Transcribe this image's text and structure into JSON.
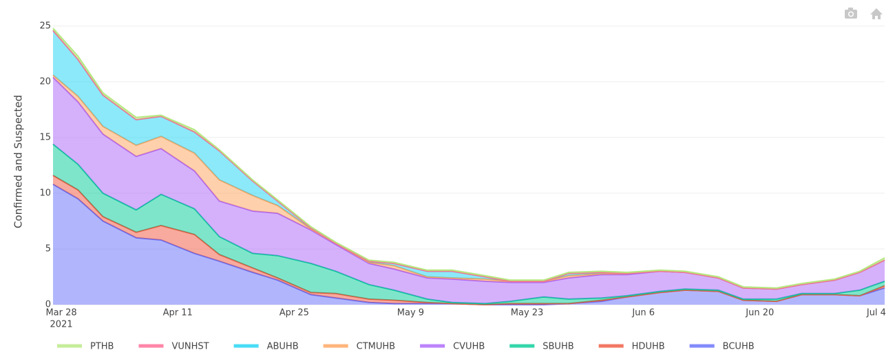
{
  "chart_data": {
    "type": "stacked_area",
    "y_label": "Confirmed and Suspected",
    "x": [
      "2021-03-27",
      "2021-03-30",
      "2021-04-02",
      "2021-04-06",
      "2021-04-09",
      "2021-04-13",
      "2021-04-16",
      "2021-04-20",
      "2021-04-23",
      "2021-04-27",
      "2021-04-30",
      "2021-05-04",
      "2021-05-07",
      "2021-05-11",
      "2021-05-14",
      "2021-05-18",
      "2021-05-21",
      "2021-05-25",
      "2021-05-28",
      "2021-06-01",
      "2021-06-04",
      "2021-06-08",
      "2021-06-11",
      "2021-06-15",
      "2021-06-18",
      "2021-06-22",
      "2021-06-25",
      "2021-06-29",
      "2021-07-02",
      "2021-07-05"
    ],
    "xlim": [
      "2021-03-27",
      "2021-07-05"
    ],
    "xticks": [
      {
        "value": "2021-03-28",
        "label": "Mar 28"
      },
      {
        "value": "2021-04-11",
        "label": "Apr 11"
      },
      {
        "value": "2021-04-25",
        "label": "Apr 25"
      },
      {
        "value": "2021-05-09",
        "label": "May 9"
      },
      {
        "value": "2021-05-23",
        "label": "May 23"
      },
      {
        "value": "2021-06-06",
        "label": "Jun 6"
      },
      {
        "value": "2021-06-20",
        "label": "Jun 20"
      },
      {
        "value": "2021-07-04",
        "label": "Jul 4"
      }
    ],
    "x_year_label": "2021",
    "ylim": [
      0,
      26.1
    ],
    "yticks": [
      0,
      5,
      10,
      15,
      20,
      25
    ],
    "grid": true,
    "legend": "bottom",
    "series": [
      {
        "name": "BCUHB",
        "color": "#636efa",
        "values": [
          10.8,
          9.5,
          7.5,
          6.0,
          5.8,
          4.6,
          3.9,
          2.9,
          2.2,
          0.9,
          0.6,
          0.2,
          0.1,
          0.1,
          0.1,
          0,
          0,
          0,
          0.1,
          0.3,
          0.7,
          1.1,
          1.3,
          1.2,
          0.4,
          0.3,
          0.9,
          0.9,
          0.8,
          1.5
        ]
      },
      {
        "name": "HDUHB",
        "color": "#ef553b",
        "values": [
          0.8,
          0.8,
          0.4,
          0.5,
          1.3,
          1.7,
          0.6,
          0.4,
          0.2,
          0.2,
          0.4,
          0.3,
          0.3,
          0.1,
          0,
          0,
          0.1,
          0.1,
          0,
          0.1,
          0,
          0,
          0,
          0,
          0,
          0,
          0,
          0,
          0,
          0.2
        ]
      },
      {
        "name": "SBUHB",
        "color": "#00cc96",
        "values": [
          2.8,
          2.3,
          2.1,
          2.0,
          2.8,
          2.3,
          1.6,
          1.3,
          2.0,
          2.6,
          2.0,
          1.3,
          0.9,
          0.3,
          0.1,
          0.1,
          0.2,
          0.6,
          0.4,
          0.2,
          0.1,
          0.1,
          0.1,
          0.1,
          0.1,
          0.2,
          0.1,
          0.1,
          0.5,
          0.4
        ]
      },
      {
        "name": "CVUHB",
        "color": "#ab63fa",
        "values": [
          6.0,
          5.6,
          5.3,
          4.8,
          4.1,
          3.4,
          3.2,
          3.8,
          3.8,
          3.0,
          2.4,
          1.9,
          1.9,
          1.9,
          2.1,
          2.0,
          1.7,
          1.3,
          1.9,
          2.1,
          1.9,
          1.8,
          1.5,
          1.1,
          1.0,
          0.9,
          0.8,
          1.2,
          1.6,
          1.9
        ]
      },
      {
        "name": "CTMUHB",
        "color": "#ffa15a",
        "values": [
          0.2,
          0.5,
          0.7,
          1.0,
          1.1,
          1.6,
          1.9,
          1.4,
          0.7,
          0.1,
          0.1,
          0.1,
          0.3,
          0.1,
          0.1,
          0.2,
          0.1,
          0.1,
          0.2,
          0.1,
          0.1,
          0,
          0,
          0,
          0,
          0,
          0,
          0,
          0,
          0
        ]
      },
      {
        "name": "ABUHB",
        "color": "#19d3f3",
        "values": [
          4.0,
          3.3,
          2.8,
          2.3,
          1.8,
          1.9,
          2.6,
          1.3,
          0.4,
          0.1,
          0,
          0.1,
          0.2,
          0.5,
          0.6,
          0.2,
          0,
          0,
          0.2,
          0.1,
          0,
          0,
          0,
          0,
          0,
          0,
          0,
          0,
          0,
          0
        ]
      },
      {
        "name": "VUNHST",
        "color": "#ff6692",
        "values": [
          0,
          0,
          0,
          0,
          0,
          0,
          0,
          0,
          0,
          0,
          0,
          0,
          0,
          0,
          0,
          0,
          0,
          0,
          0,
          0,
          0,
          0,
          0,
          0,
          0,
          0,
          0,
          0,
          0,
          0
        ]
      },
      {
        "name": "PTHB",
        "color": "#b6e880",
        "values": [
          0.2,
          0.3,
          0.2,
          0.2,
          0.1,
          0.2,
          0.1,
          0.1,
          0.1,
          0.1,
          0.1,
          0.1,
          0.1,
          0.1,
          0.1,
          0.1,
          0.1,
          0.1,
          0.1,
          0.1,
          0.1,
          0.1,
          0.1,
          0.1,
          0.1,
          0.1,
          0.1,
          0.1,
          0.1,
          0.2
        ]
      }
    ]
  }
}
